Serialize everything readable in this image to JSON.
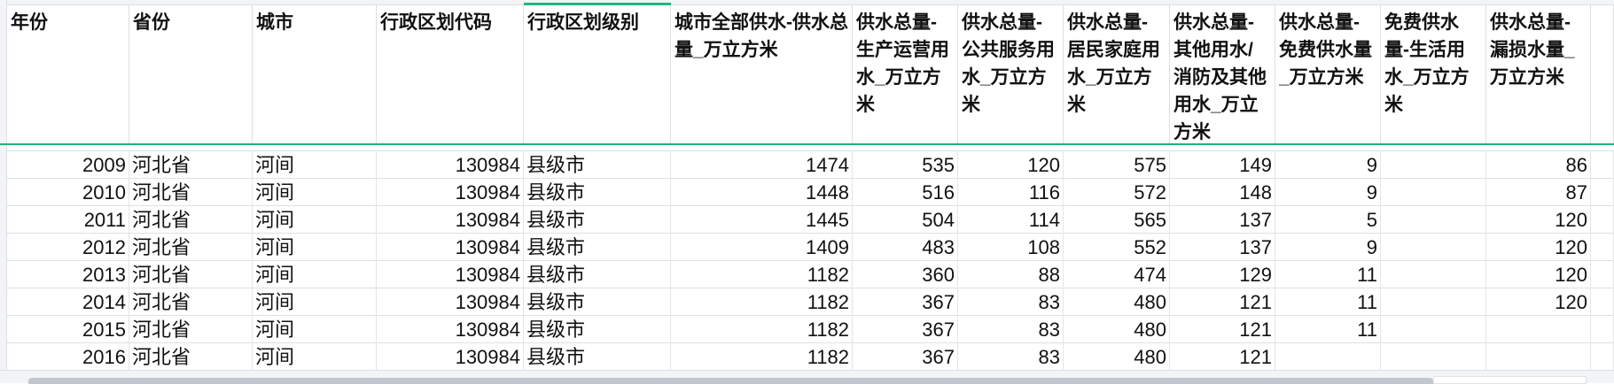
{
  "headers": [
    "年份",
    "省份",
    "城市",
    "行政区划代码",
    "行政区划级别",
    "城市全部供水-供水总量_万立方米",
    "供水总量-生产运营用水_万立方米",
    "供水总量-公共服务用水_万立方米",
    "供水总量-居民家庭用水_万立方米",
    "供水总量-其他用水/消防及其他用水_万立方米",
    "供水总量-免费供水量_万立方米",
    "免费供水量-生活用水_万立方米",
    "供水总量-漏损水量_万立方米"
  ],
  "rows": [
    [
      "2009",
      "河北省",
      "河间",
      "130984",
      "县级市",
      "1474",
      "535",
      "120",
      "575",
      "149",
      "9",
      "",
      "86"
    ],
    [
      "2010",
      "河北省",
      "河间",
      "130984",
      "县级市",
      "1448",
      "516",
      "116",
      "572",
      "148",
      "9",
      "",
      "87"
    ],
    [
      "2011",
      "河北省",
      "河间",
      "130984",
      "县级市",
      "1445",
      "504",
      "114",
      "565",
      "137",
      "5",
      "",
      "120"
    ],
    [
      "2012",
      "河北省",
      "河间",
      "130984",
      "县级市",
      "1409",
      "483",
      "108",
      "552",
      "137",
      "9",
      "",
      "120"
    ],
    [
      "2013",
      "河北省",
      "河间",
      "130984",
      "县级市",
      "1182",
      "360",
      "88",
      "474",
      "129",
      "11",
      "",
      "120"
    ],
    [
      "2014",
      "河北省",
      "河间",
      "130984",
      "县级市",
      "1182",
      "367",
      "83",
      "480",
      "121",
      "11",
      "",
      "120"
    ],
    [
      "2015",
      "河北省",
      "河间",
      "130984",
      "县级市",
      "1182",
      "367",
      "83",
      "480",
      "121",
      "11",
      "",
      ""
    ],
    [
      "2016",
      "河北省",
      "河间",
      "130984",
      "县级市",
      "1182",
      "367",
      "83",
      "480",
      "121",
      "",
      "",
      ""
    ]
  ],
  "colors": {
    "accent": "#1fb57f",
    "freeze_line": "#21b37a",
    "grid": "#dcdfe4"
  }
}
